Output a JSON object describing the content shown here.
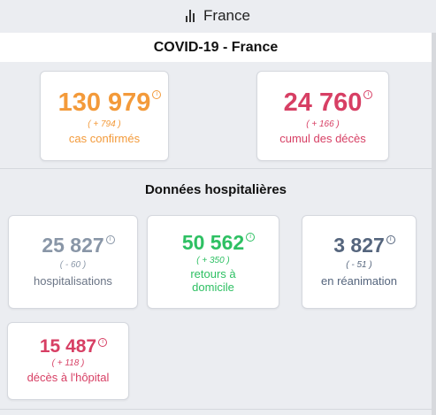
{
  "header": {
    "country": "France",
    "icon": "bar-chart-icon"
  },
  "title": "COVID-19 - France",
  "colors": {
    "orange": "#f39a3a",
    "red": "#d73f64",
    "gray": "#8996a7",
    "green": "#2ec063",
    "slate": "#55657d"
  },
  "summary": {
    "confirmed": {
      "value": "130 979",
      "delta": "( + 794 )",
      "label": "cas confirmés"
    },
    "deaths": {
      "value": "24 760",
      "delta": "( + 166 )",
      "label": "cumul des décès"
    }
  },
  "hospital": {
    "title": "Données hospitalières",
    "hospitalised": {
      "value": "25 827",
      "delta": "( - 60 )",
      "label": "hospitalisations"
    },
    "returned_home": {
      "value": "50 562",
      "delta": "( + 350 )",
      "label_line1": "retours à",
      "label_line2": "domicile"
    },
    "icu": {
      "value": "3 827",
      "delta": "( - 51 )",
      "label": "en réanimation"
    },
    "hospital_deaths": {
      "value": "15 487",
      "delta": "( + 118 )",
      "label": "décès à l'hôpital"
    }
  }
}
